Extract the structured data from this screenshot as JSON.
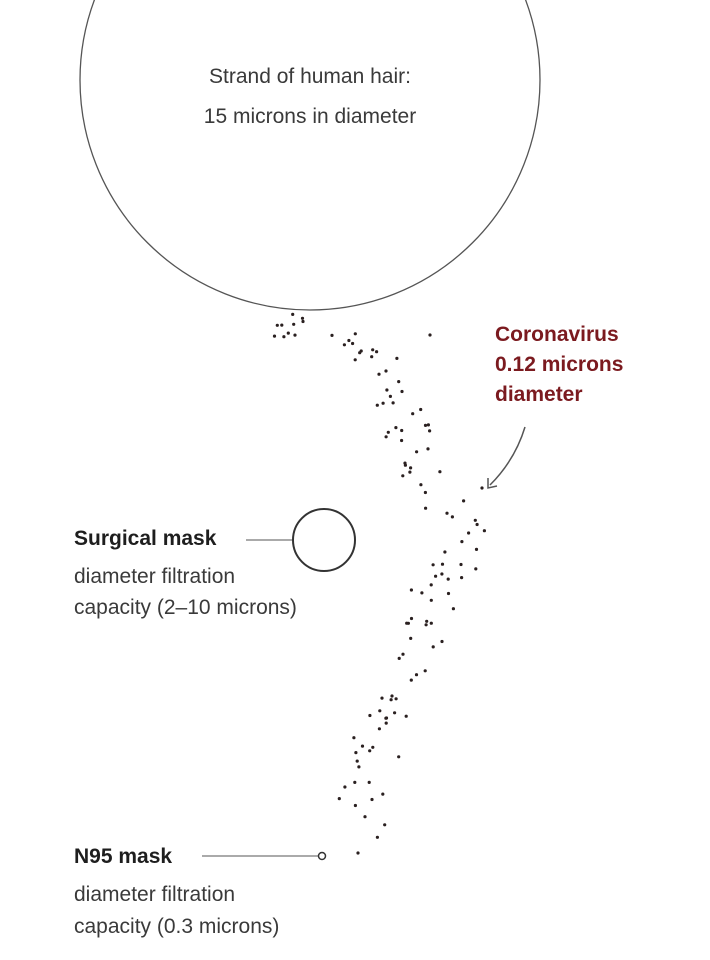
{
  "hair": {
    "line1": "Strand of human hair:",
    "line2": "15 microns in diameter"
  },
  "coronavirus": {
    "line1": "Coronavirus",
    "line2": "0.12 microns",
    "line3": "diameter",
    "color": "#7b1a1f"
  },
  "surgical": {
    "title": "Surgical mask",
    "line1": "diameter filtration",
    "line2": "capacity (2–10 microns)"
  },
  "n95": {
    "title": "N95 mask",
    "line1": "diameter filtration",
    "line2": "capacity (0.3 microns)"
  }
}
